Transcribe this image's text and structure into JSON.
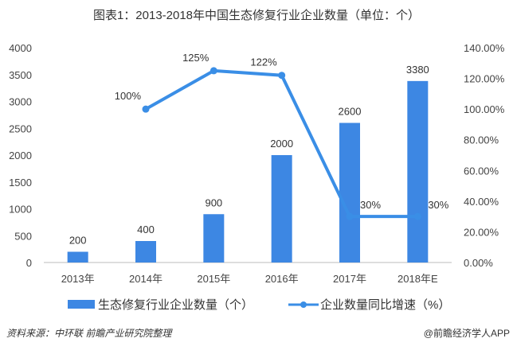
{
  "title": "图表1：2013-2018年中国生态修复行业企业数量（单位：个）",
  "source": "资料来源：中环联 前瞻产业研究院整理",
  "credit": "@前瞻经济学人APP",
  "colors": {
    "bar": "#3d87e3",
    "line": "#3a8ee6"
  },
  "chart_data": {
    "type": "bar",
    "title": "图表1：2013-2018年中国生态修复行业企业数量（单位：个）",
    "categories": [
      "2013年",
      "2014年",
      "2015年",
      "2016年",
      "2017年",
      "2018年E"
    ],
    "series": [
      {
        "name": "生态修复行业企业数量（个）",
        "type": "bar",
        "axis": "left",
        "values": [
          200,
          400,
          900,
          2000,
          2600,
          3380
        ],
        "labels": [
          "200",
          "400",
          "900",
          "2000",
          "2600",
          "3380"
        ]
      },
      {
        "name": "企业数量同比增速（%）",
        "type": "line",
        "axis": "right",
        "values": [
          null,
          100,
          125,
          122,
          30,
          30
        ],
        "labels": [
          "",
          "100%",
          "125%",
          "122%",
          "30%",
          "30%"
        ]
      }
    ],
    "ylim_left": [
      0,
      4000
    ],
    "yticks_left": [
      "0",
      "500",
      "1000",
      "1500",
      "2000",
      "2500",
      "3000",
      "3500",
      "4000"
    ],
    "ylim_right": [
      0,
      140
    ],
    "yticks_right": [
      "0.00%",
      "20.00%",
      "40.00%",
      "60.00%",
      "80.00%",
      "100.00%",
      "120.00%",
      "140.00%"
    ],
    "legend": "bottom",
    "grid": false
  }
}
